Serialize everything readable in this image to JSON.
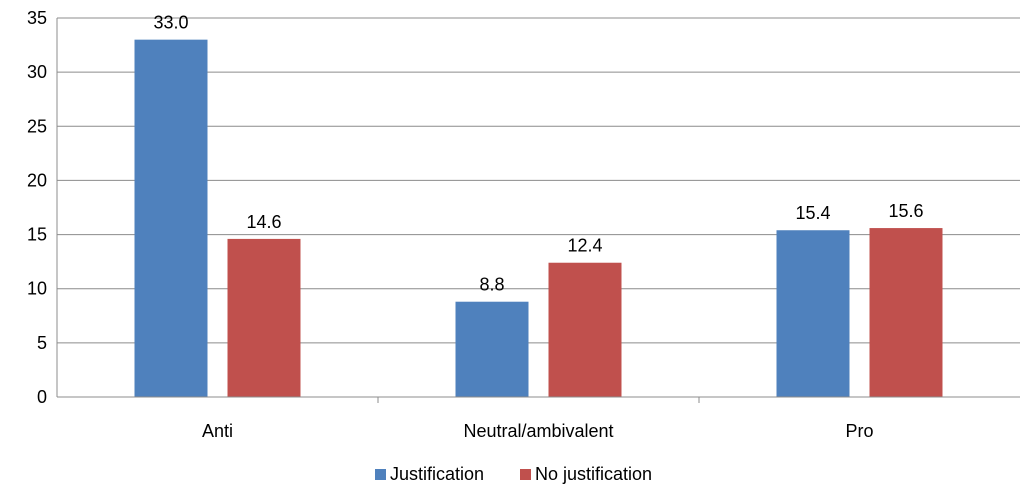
{
  "chart_data": {
    "type": "bar",
    "categories": [
      "Anti",
      "Neutral/ambivalent",
      "Pro"
    ],
    "series": [
      {
        "name": "Justification",
        "values": [
          33.0,
          8.8,
          15.4
        ],
        "color": "#4f81bd"
      },
      {
        "name": "No justification",
        "values": [
          14.6,
          12.4,
          15.6
        ],
        "color": "#c0504d"
      }
    ],
    "yticks": [
      "0",
      "5",
      "10",
      "15",
      "20",
      "25",
      "30",
      "35"
    ],
    "ylim": [
      0,
      35
    ],
    "grid": true,
    "legend_position": "bottom"
  }
}
